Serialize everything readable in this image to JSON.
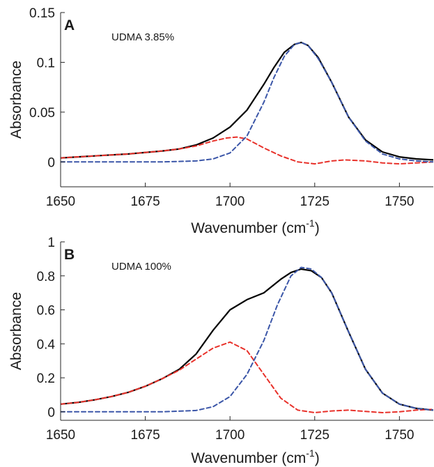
{
  "chart_data": [
    {
      "type": "line",
      "panel": "A",
      "annotation": "UDMA 3.85%",
      "xlabel": "Wavenumber (cm",
      "xlabel_sup": "-1",
      "xlabel_end": ")",
      "ylabel": "Absorbance",
      "xlim": [
        1650,
        1760
      ],
      "ylim": [
        -0.025,
        0.15
      ],
      "xticks": [
        1650,
        1675,
        1700,
        1725,
        1750
      ],
      "xtick_labels": [
        "1650",
        "1675",
        "1700",
        "1725",
        "1750"
      ],
      "yticks": [
        0,
        0.05,
        0.1,
        0.15
      ],
      "ytick_labels": [
        "0",
        "0.05",
        "0.1",
        "0.15"
      ],
      "grid": false,
      "series": [
        {
          "color": "#000000",
          "dash": "solid",
          "x": [
            1650,
            1660,
            1670,
            1680,
            1685,
            1690,
            1695,
            1700,
            1705,
            1710,
            1713,
            1716,
            1719,
            1721,
            1723,
            1726,
            1730,
            1735,
            1740,
            1745,
            1750,
            1755,
            1760
          ],
          "y": [
            0.004,
            0.006,
            0.008,
            0.011,
            0.013,
            0.017,
            0.024,
            0.035,
            0.052,
            0.078,
            0.095,
            0.11,
            0.118,
            0.12,
            0.117,
            0.105,
            0.08,
            0.045,
            0.022,
            0.01,
            0.005,
            0.003,
            0.002
          ]
        },
        {
          "color": "#e8312a",
          "dash": "dashed",
          "x": [
            1650,
            1660,
            1670,
            1680,
            1685,
            1690,
            1695,
            1699,
            1702,
            1705,
            1710,
            1715,
            1720,
            1725,
            1730,
            1734,
            1740,
            1745,
            1750,
            1755,
            1760
          ],
          "y": [
            0.004,
            0.006,
            0.008,
            0.011,
            0.013,
            0.016,
            0.021,
            0.024,
            0.025,
            0.023,
            0.014,
            0.006,
            0.0,
            -0.002,
            0.001,
            0.002,
            0.001,
            -0.001,
            -0.002,
            -0.001,
            0.0
          ]
        },
        {
          "color": "#3b56a8",
          "dash": "dashed",
          "x": [
            1650,
            1680,
            1690,
            1695,
            1700,
            1705,
            1710,
            1713,
            1716,
            1719,
            1721,
            1723,
            1726,
            1730,
            1735,
            1740,
            1745,
            1750,
            1755,
            1760
          ],
          "y": [
            0.0,
            0.0,
            0.001,
            0.003,
            0.009,
            0.026,
            0.06,
            0.085,
            0.106,
            0.118,
            0.12,
            0.117,
            0.104,
            0.08,
            0.045,
            0.021,
            0.008,
            0.003,
            0.001,
            0.0
          ]
        }
      ]
    },
    {
      "type": "line",
      "panel": "B",
      "annotation": "UDMA 100%",
      "xlabel": "Wavenumber (cm",
      "xlabel_sup": "-1",
      "xlabel_end": ")",
      "ylabel": "Absorbance",
      "xlim": [
        1650,
        1760
      ],
      "ylim": [
        -0.05,
        1
      ],
      "xticks": [
        1650,
        1675,
        1700,
        1725,
        1750
      ],
      "xtick_labels": [
        "1650",
        "1675",
        "1700",
        "1725",
        "1750"
      ],
      "yticks": [
        0,
        0.2,
        0.4,
        0.6,
        0.8,
        1
      ],
      "ytick_labels": [
        "0",
        "0.2",
        "0.4",
        "0.6",
        "0.8",
        "1"
      ],
      "grid": false,
      "series": [
        {
          "color": "#000000",
          "dash": "solid",
          "x": [
            1650,
            1655,
            1660,
            1665,
            1670,
            1675,
            1680,
            1685,
            1690,
            1695,
            1700,
            1705,
            1710,
            1715,
            1718,
            1721,
            1724,
            1727,
            1730,
            1735,
            1740,
            1745,
            1750,
            1755,
            1760
          ],
          "y": [
            0.045,
            0.055,
            0.07,
            0.09,
            0.115,
            0.15,
            0.195,
            0.25,
            0.34,
            0.48,
            0.6,
            0.66,
            0.7,
            0.78,
            0.82,
            0.84,
            0.83,
            0.79,
            0.7,
            0.47,
            0.25,
            0.11,
            0.045,
            0.02,
            0.01
          ]
        },
        {
          "color": "#e8312a",
          "dash": "dashed",
          "x": [
            1650,
            1655,
            1660,
            1665,
            1670,
            1675,
            1680,
            1685,
            1690,
            1695,
            1700,
            1705,
            1710,
            1715,
            1720,
            1725,
            1730,
            1735,
            1740,
            1745,
            1750,
            1755,
            1760
          ],
          "y": [
            0.045,
            0.055,
            0.07,
            0.09,
            0.115,
            0.15,
            0.195,
            0.245,
            0.31,
            0.375,
            0.41,
            0.36,
            0.22,
            0.08,
            0.01,
            -0.005,
            0.005,
            0.01,
            0.002,
            -0.005,
            0.0,
            0.01,
            0.015
          ]
        },
        {
          "color": "#3b56a8",
          "dash": "dashed",
          "x": [
            1650,
            1680,
            1690,
            1695,
            1700,
            1705,
            1710,
            1714,
            1718,
            1721,
            1724,
            1727,
            1730,
            1735,
            1740,
            1745,
            1750,
            1755,
            1760
          ],
          "y": [
            0.0,
            0.0,
            0.008,
            0.03,
            0.09,
            0.22,
            0.42,
            0.63,
            0.8,
            0.85,
            0.84,
            0.79,
            0.7,
            0.47,
            0.25,
            0.11,
            0.045,
            0.02,
            0.01
          ]
        }
      ]
    }
  ]
}
